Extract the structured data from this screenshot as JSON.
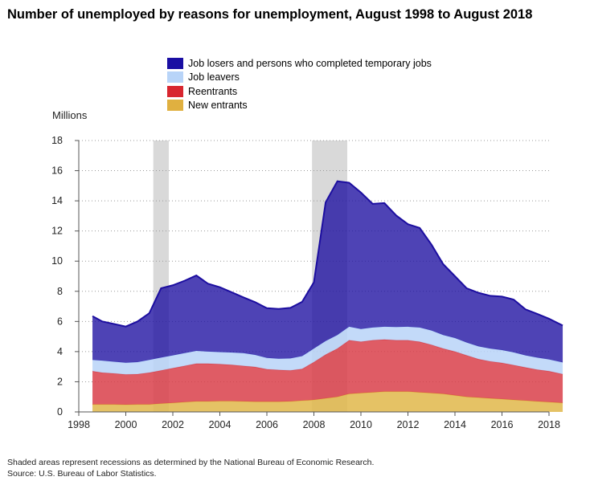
{
  "title": "Number of unemployed by reasons for unemployment, August 1998 to August 2018",
  "footnotes": [
    "Shaded areas represent recessions as determined by the National Bureau of Economic Research.",
    "Source: U.S. Bureau of Labor Statistics."
  ],
  "chart_data": {
    "type": "area",
    "stacked": true,
    "ylabel": "Millions",
    "xlabel": "",
    "xlim": [
      1998.583,
      2018.583
    ],
    "ylim": [
      0,
      18
    ],
    "x_ticks": [
      1998,
      2000,
      2002,
      2004,
      2006,
      2008,
      2010,
      2012,
      2014,
      2016,
      2018
    ],
    "y_ticks": [
      0,
      2,
      4,
      6,
      8,
      10,
      12,
      14,
      16,
      18
    ],
    "grid": "horizontal dotted",
    "legend_position": "top",
    "recessions": [
      [
        2001.17,
        2001.83
      ],
      [
        2007.92,
        2009.42
      ]
    ],
    "x": [
      1998.583,
      1999.0,
      1999.5,
      2000.0,
      2000.5,
      2001.0,
      2001.5,
      2002.0,
      2002.5,
      2003.0,
      2003.5,
      2004.0,
      2004.5,
      2005.0,
      2005.5,
      2006.0,
      2006.5,
      2007.0,
      2007.5,
      2008.0,
      2008.5,
      2009.0,
      2009.5,
      2010.0,
      2010.5,
      2011.0,
      2011.5,
      2012.0,
      2012.5,
      2013.0,
      2013.5,
      2014.0,
      2014.5,
      2015.0,
      2015.5,
      2016.0,
      2016.5,
      2017.0,
      2017.5,
      2018.0,
      2018.583
    ],
    "series": [
      {
        "name": "New entrants",
        "color": "#e0b74a",
        "values": [
          0.5,
          0.5,
          0.5,
          0.48,
          0.5,
          0.5,
          0.55,
          0.6,
          0.65,
          0.7,
          0.7,
          0.72,
          0.72,
          0.7,
          0.68,
          0.68,
          0.68,
          0.7,
          0.75,
          0.8,
          0.9,
          1.0,
          1.2,
          1.25,
          1.3,
          1.35,
          1.35,
          1.35,
          1.3,
          1.25,
          1.2,
          1.1,
          1.0,
          0.95,
          0.9,
          0.85,
          0.8,
          0.75,
          0.7,
          0.65,
          0.6
        ]
      },
      {
        "name": "Reentrants",
        "color": "#d9404a",
        "values": [
          2.2,
          2.1,
          2.05,
          2.0,
          2.0,
          2.1,
          2.2,
          2.3,
          2.4,
          2.5,
          2.5,
          2.45,
          2.4,
          2.35,
          2.3,
          2.15,
          2.1,
          2.05,
          2.1,
          2.5,
          2.9,
          3.2,
          3.55,
          3.4,
          3.45,
          3.45,
          3.4,
          3.4,
          3.35,
          3.2,
          3.0,
          2.9,
          2.75,
          2.55,
          2.45,
          2.4,
          2.3,
          2.2,
          2.1,
          2.05,
          1.9
        ]
      },
      {
        "name": "Job leavers",
        "color": "#b8d4f8",
        "values": [
          0.75,
          0.8,
          0.78,
          0.78,
          0.8,
          0.85,
          0.85,
          0.85,
          0.85,
          0.85,
          0.8,
          0.8,
          0.82,
          0.85,
          0.8,
          0.75,
          0.75,
          0.8,
          0.85,
          0.9,
          0.9,
          0.9,
          0.9,
          0.85,
          0.85,
          0.85,
          0.88,
          0.9,
          0.95,
          0.95,
          0.9,
          0.9,
          0.85,
          0.85,
          0.85,
          0.85,
          0.85,
          0.8,
          0.8,
          0.78,
          0.78
        ]
      },
      {
        "name": "Job losers and persons who completed temporary jobs",
        "color": "#1c0ea0",
        "values": [
          2.9,
          2.6,
          2.5,
          2.4,
          2.7,
          3.1,
          4.6,
          4.65,
          4.8,
          5.0,
          4.5,
          4.3,
          4.0,
          3.7,
          3.5,
          3.3,
          3.3,
          3.35,
          3.6,
          4.4,
          9.2,
          10.2,
          9.55,
          9.05,
          8.2,
          8.2,
          7.4,
          6.8,
          6.6,
          5.7,
          4.7,
          4.1,
          3.6,
          3.55,
          3.5,
          3.55,
          3.5,
          3.05,
          2.9,
          2.7,
          2.45
        ]
      }
    ]
  }
}
